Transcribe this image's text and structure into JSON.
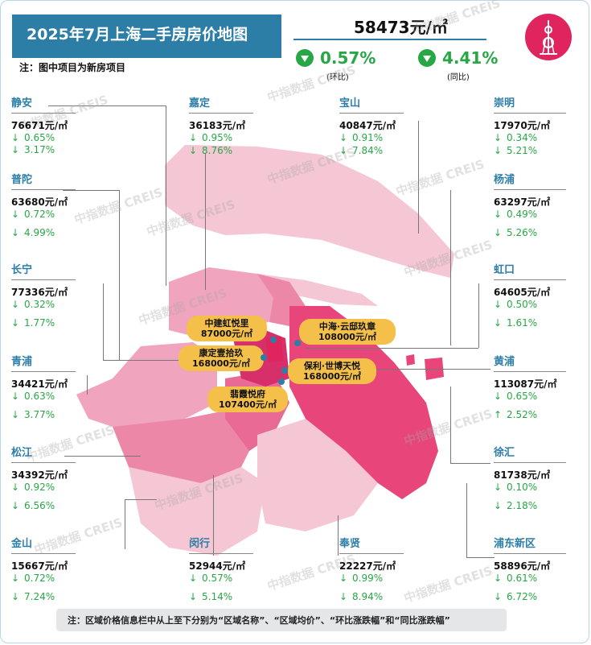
{
  "title": "2025年7月上海二手房房价地图",
  "note": "注：图中项目为新房项目",
  "summary": {
    "avg_price": "58473元/㎡",
    "mom_value": "0.57%",
    "mom_label": "(环比)",
    "yoy_value": "4.41%",
    "yoy_label": "(同比)"
  },
  "districts": {
    "jingan": {
      "name": "静安",
      "price": "76671元/㎡",
      "mom": "0.65%",
      "yoy": "3.17%",
      "mom_arrow": "↓",
      "yoy_arrow": "↓"
    },
    "putuo": {
      "name": "普陀",
      "price": "63680元/㎡",
      "mom": "0.72%",
      "yoy": "4.99%",
      "mom_arrow": "↓",
      "yoy_arrow": "↓"
    },
    "changning": {
      "name": "长宁",
      "price": "77336元/㎡",
      "mom": "0.32%",
      "yoy": "1.77%",
      "mom_arrow": "↓",
      "yoy_arrow": "↓"
    },
    "qingpu": {
      "name": "青浦",
      "price": "34421元/㎡",
      "mom": "0.63%",
      "yoy": "3.77%",
      "mom_arrow": "↓",
      "yoy_arrow": "↓"
    },
    "songjiang": {
      "name": "松江",
      "price": "34392元/㎡",
      "mom": "0.92%",
      "yoy": "6.56%",
      "mom_arrow": "↓",
      "yoy_arrow": "↓"
    },
    "jinshan": {
      "name": "金山",
      "price": "15667元/㎡",
      "mom": "0.72%",
      "yoy": "7.24%",
      "mom_arrow": "↓",
      "yoy_arrow": "↓"
    },
    "jiading": {
      "name": "嘉定",
      "price": "36183元/㎡",
      "mom": "0.95%",
      "yoy": "8.76%",
      "mom_arrow": "↓",
      "yoy_arrow": "↓"
    },
    "baoshan": {
      "name": "宝山",
      "price": "40847元/㎡",
      "mom": "0.91%",
      "yoy": "7.84%",
      "mom_arrow": "↓",
      "yoy_arrow": "↓"
    },
    "minhang": {
      "name": "闵行",
      "price": "52944元/㎡",
      "mom": "0.57%",
      "yoy": "5.14%",
      "mom_arrow": "↓",
      "yoy_arrow": "↓"
    },
    "fengxian": {
      "name": "奉贤",
      "price": "22227元/㎡",
      "mom": "0.99%",
      "yoy": "8.94%",
      "mom_arrow": "↓",
      "yoy_arrow": "↓"
    },
    "chongming": {
      "name": "崇明",
      "price": "17970元/㎡",
      "mom": "0.34%",
      "yoy": "5.21%",
      "mom_arrow": "↓",
      "yoy_arrow": "↓"
    },
    "yangpu": {
      "name": "杨浦",
      "price": "63297元/㎡",
      "mom": "0.49%",
      "yoy": "5.26%",
      "mom_arrow": "↓",
      "yoy_arrow": "↓"
    },
    "hongkou": {
      "name": "虹口",
      "price": "64605元/㎡",
      "mom": "0.50%",
      "yoy": "1.61%",
      "mom_arrow": "↓",
      "yoy_arrow": "↓"
    },
    "huangpu": {
      "name": "黄浦",
      "price": "113087元/㎡",
      "mom": "0.65%",
      "yoy": "2.52%",
      "mom_arrow": "↓",
      "yoy_arrow": "↑"
    },
    "xuhui": {
      "name": "徐汇",
      "price": "81738元/㎡",
      "mom": "0.10%",
      "yoy": "2.18%",
      "mom_arrow": "↓",
      "yoy_arrow": "↓"
    },
    "pudong": {
      "name": "浦东新区",
      "price": "58896元/㎡",
      "mom": "0.61%",
      "yoy": "6.72%",
      "mom_arrow": "↓",
      "yoy_arrow": "↓"
    }
  },
  "projects": [
    {
      "name": "中建虹悦里",
      "price": "87000元/㎡"
    },
    {
      "name": "中海·云邸玖章",
      "price": "108000元/㎡"
    },
    {
      "name": "康定壹拾玖",
      "price": "168000元/㎡"
    },
    {
      "name": "保利·世博天悦",
      "price": "168000元/㎡"
    },
    {
      "name": "翡霞悦府",
      "price": "107400元/㎡"
    }
  ],
  "watermark": "中指数据 CREIS",
  "footnote": "注：区域价格信息栏中从上至下分别为“区域名称”、“区域均价”、“环比涨跌幅”和“同比涨跌幅”",
  "colors": {
    "accent": "#2d7ea7",
    "down": "#27a745",
    "project": "#f4c04a",
    "map_dark": "#e8457a",
    "map_light": "#f7c9d6"
  },
  "icons": {
    "tower": "oriental-pearl-tower-icon",
    "down": "down-triangle-icon"
  }
}
